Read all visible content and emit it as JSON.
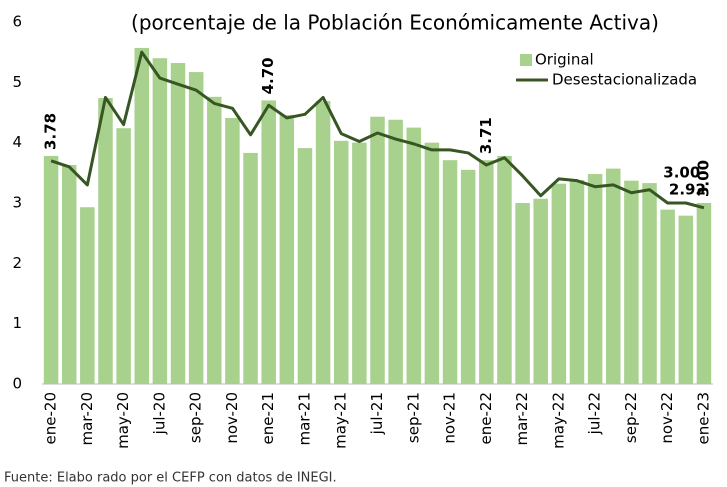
{
  "chart_data": {
    "type": "bar",
    "title": "(porcentaje de la Población Económicamente Activa)",
    "source": "Fuente: Elabo rado por el CEFP con datos de INEGI.",
    "categories": [
      "ene-20",
      null,
      "mar-20",
      null,
      "may-20",
      null,
      "jul-20",
      null,
      "sep-20",
      null,
      "nov-20",
      null,
      "ene-21",
      null,
      "mar-21",
      null,
      "may-21",
      null,
      "jul-21",
      null,
      "sep-21",
      null,
      "nov-21",
      null,
      "ene-22",
      null,
      "mar-22",
      null,
      "may-22",
      null,
      "jul-22",
      null,
      "sep-22",
      null,
      "nov-22",
      null,
      "ene-23"
    ],
    "series": [
      {
        "name": "Original",
        "color": "#a9d18e",
        "label_color": "#9cc97c",
        "values": [
          3.78,
          3.63,
          2.93,
          4.74,
          4.24,
          5.57,
          5.4,
          5.32,
          5.17,
          4.76,
          4.41,
          3.83,
          4.7,
          4.46,
          3.91,
          4.69,
          4.03,
          4.0,
          4.43,
          4.38,
          4.25,
          4.0,
          3.71,
          3.55,
          3.71,
          3.78,
          3.0,
          3.07,
          3.32,
          3.38,
          3.48,
          3.57,
          3.37,
          3.33,
          2.89,
          2.79,
          3.0
        ],
        "value_labels": [
          "3.78",
          null,
          null,
          null,
          null,
          null,
          null,
          null,
          null,
          null,
          null,
          null,
          "4.70",
          null,
          null,
          null,
          null,
          null,
          null,
          null,
          null,
          null,
          null,
          null,
          "3.71",
          null,
          null,
          null,
          null,
          null,
          null,
          null,
          null,
          null,
          null,
          null,
          "3.00"
        ]
      },
      {
        "name": "Desestacionalizada",
        "type": "line",
        "color": "#375623",
        "label_color": "#375623",
        "values": [
          3.7,
          3.6,
          3.3,
          4.75,
          4.3,
          5.5,
          5.07,
          4.97,
          4.87,
          4.65,
          4.57,
          4.13,
          4.62,
          4.41,
          4.47,
          4.75,
          4.15,
          4.02,
          4.16,
          4.06,
          3.98,
          3.88,
          3.88,
          3.83,
          3.63,
          3.75,
          3.45,
          3.12,
          3.4,
          3.37,
          3.27,
          3.3,
          3.17,
          3.22,
          3.0,
          3.0,
          2.92
        ],
        "value_labels": [
          null,
          null,
          null,
          null,
          null,
          null,
          null,
          null,
          null,
          null,
          null,
          null,
          null,
          null,
          null,
          null,
          null,
          null,
          null,
          null,
          null,
          null,
          null,
          null,
          null,
          null,
          null,
          null,
          null,
          null,
          null,
          null,
          null,
          null,
          null,
          "3.00",
          "2.92"
        ]
      }
    ],
    "ylim": [
      0,
      6
    ],
    "yticks": [
      0,
      1,
      2,
      3,
      4,
      5,
      6
    ],
    "grid": false,
    "legend": "top-right"
  }
}
